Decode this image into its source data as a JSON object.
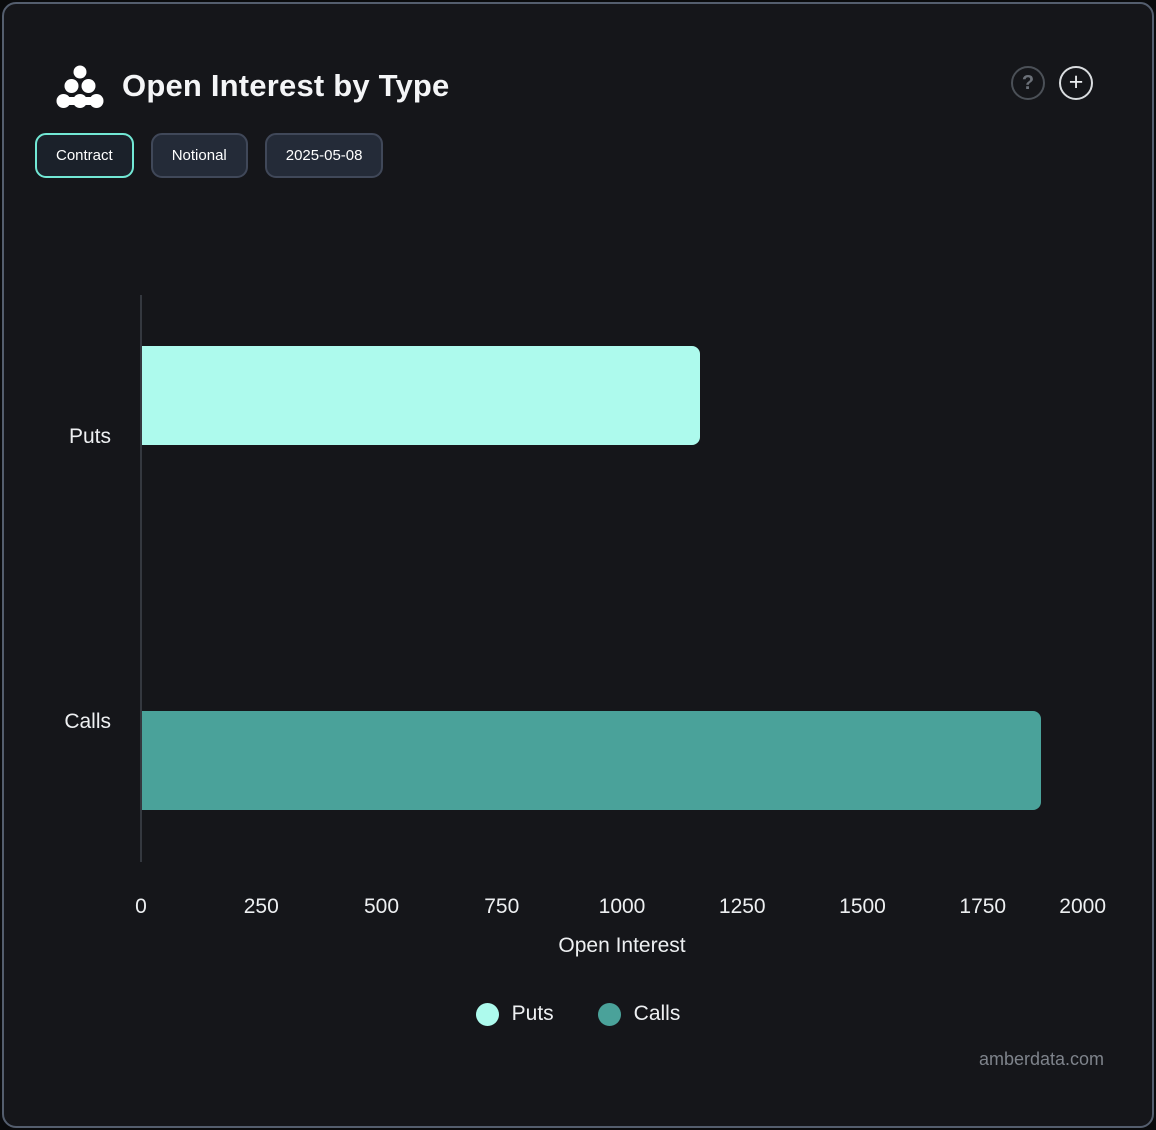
{
  "header": {
    "title": "Open Interest by Type",
    "logo_icon": "dots-pyramid-icon",
    "help_glyph": "?",
    "add_glyph": "+"
  },
  "toolbar": {
    "buttons": [
      {
        "label": "Contract",
        "active": true
      },
      {
        "label": "Notional",
        "active": false
      },
      {
        "label": "2025-05-08",
        "active": false
      }
    ]
  },
  "chart_data": {
    "type": "bar",
    "orientation": "horizontal",
    "categories": [
      "Puts",
      "Calls"
    ],
    "values": [
      1160,
      1870
    ],
    "colors": [
      "#ADFAED",
      "#4AA29A"
    ],
    "title": "Open Interest by Type",
    "xlabel": "Open Interest",
    "ylabel": "",
    "xlim": [
      0,
      2000
    ],
    "xticks": [
      0,
      250,
      500,
      750,
      1000,
      1250,
      1500,
      1750,
      2000
    ],
    "grid": false,
    "legend_position": "bottom",
    "legend": [
      {
        "label": "Puts",
        "color": "#ADFAED"
      },
      {
        "label": "Calls",
        "color": "#4AA29A"
      }
    ]
  },
  "footer": {
    "watermark": "amberdata.com"
  }
}
